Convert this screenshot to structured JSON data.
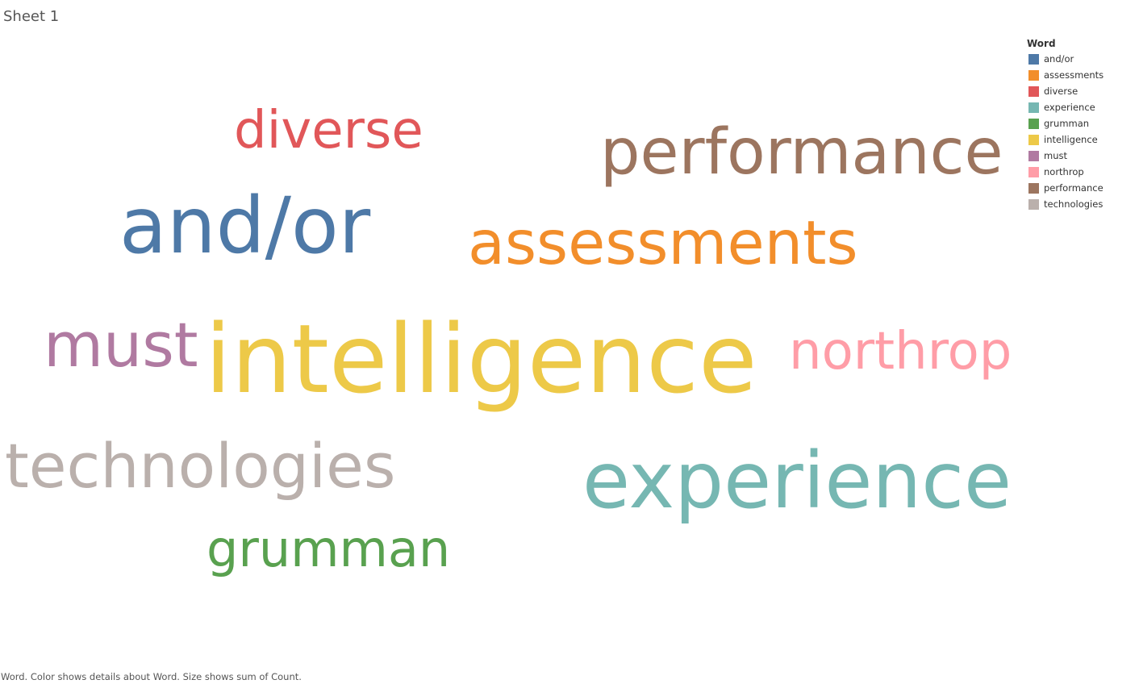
{
  "sheet": {
    "title": "Sheet 1"
  },
  "legend": {
    "title": "Word",
    "items": [
      {
        "label": "and/or",
        "color": "#4e79a7"
      },
      {
        "label": "assessments",
        "color": "#f28e2b"
      },
      {
        "label": "diverse",
        "color": "#e15759"
      },
      {
        "label": "experience",
        "color": "#76b7b2"
      },
      {
        "label": "grumman",
        "color": "#59a14f"
      },
      {
        "label": "intelligence",
        "color": "#edc948"
      },
      {
        "label": "must",
        "color": "#b07aa1"
      },
      {
        "label": "northrop",
        "color": "#ff9da7"
      },
      {
        "label": "performance",
        "color": "#9c755f"
      },
      {
        "label": "technologies",
        "color": "#bab0ac"
      }
    ]
  },
  "caption": "Word.  Color shows details about Word.  Size shows sum of Count.",
  "chart_data": {
    "type": "word_cloud",
    "encoding": {
      "color": "Word",
      "size": "sum of Count"
    },
    "words": [
      {
        "word": "intelligence",
        "count": 10,
        "color": "#edc948"
      },
      {
        "word": "and/or",
        "count": 8,
        "color": "#4e79a7"
      },
      {
        "word": "experience",
        "count": 8,
        "color": "#76b7b2"
      },
      {
        "word": "assessments",
        "count": 7,
        "color": "#f28e2b"
      },
      {
        "word": "performance",
        "count": 7,
        "color": "#9c755f"
      },
      {
        "word": "must",
        "count": 6,
        "color": "#b07aa1"
      },
      {
        "word": "technologies",
        "count": 6,
        "color": "#bab0ac"
      },
      {
        "word": "diverse",
        "count": 5,
        "color": "#e15759"
      },
      {
        "word": "northrop",
        "count": 5,
        "color": "#ff9da7"
      },
      {
        "word": "grumman",
        "count": 5,
        "color": "#59a14f"
      }
    ]
  }
}
